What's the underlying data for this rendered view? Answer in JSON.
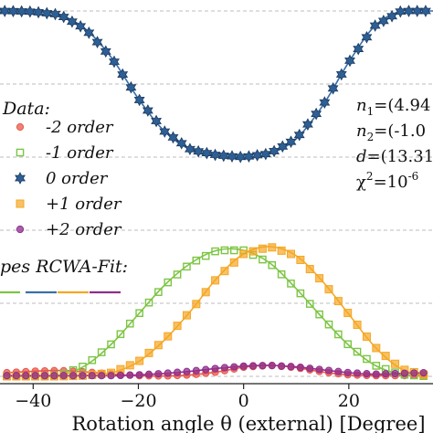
{
  "chart_data": {
    "type": "line",
    "title": "",
    "xlabel": "Rotation angle θ (external) [Degree]",
    "ylabel": "",
    "xlim": [
      -47,
      36
    ],
    "ylim": [
      0,
      1
    ],
    "x_ticks": [
      -40,
      -20,
      0,
      20
    ],
    "x_tick_labels": [
      "−40",
      "−20",
      "0",
      "20"
    ],
    "grid": true,
    "legend_placement": "left",
    "legend": {
      "data_title": "Data:",
      "fit_title": "pes RCWA-Fit:"
    },
    "annotations": {
      "n1_label": "n",
      "n1_sub": "1",
      "n1_value": "=(4.94",
      "n2_label": "n",
      "n2_sub": "2",
      "n2_value": "=(-1.0",
      "d_label": "d",
      "d_value": "=(13.31",
      "chi_label": "χ",
      "chi_value": "=10",
      "chi_exp": "-6",
      "chi_sup": "2"
    },
    "series": [
      {
        "name": "-2 order",
        "color": "#e8584a",
        "marker": "circle",
        "x": [
          -45,
          -40,
          -35,
          -30,
          -25,
          -20,
          -15,
          -10,
          -5,
          0,
          5,
          10,
          15,
          20,
          25,
          30,
          35
        ],
        "values": [
          0.01,
          0.014,
          0.016,
          0.012,
          0.006,
          0.002,
          0.001,
          0.004,
          0.012,
          0.025,
          0.03,
          0.024,
          0.012,
          0.004,
          0.002,
          0.002,
          0.003
        ]
      },
      {
        "name": "-1 order",
        "color": "#7cc543",
        "marker": "square-open",
        "x": [
          -45,
          -40,
          -35,
          -30,
          -25,
          -20,
          -15,
          -10,
          -5,
          0,
          5,
          10,
          15,
          20,
          25,
          30,
          35
        ],
        "values": [
          0.0,
          0.0,
          0.003,
          0.03,
          0.09,
          0.17,
          0.25,
          0.31,
          0.345,
          0.345,
          0.31,
          0.24,
          0.16,
          0.085,
          0.03,
          0.005,
          0.0
        ]
      },
      {
        "name": "0 order",
        "color": "#3a6fa8",
        "marker": "star",
        "x": [
          -47,
          -45,
          -40,
          -35,
          -30,
          -25,
          -20,
          -15,
          -10,
          -5,
          0,
          5,
          10,
          15,
          20,
          25,
          30,
          35,
          36
        ],
        "values": [
          1.0,
          1.0,
          0.998,
          0.99,
          0.95,
          0.87,
          0.76,
          0.67,
          0.62,
          0.605,
          0.6,
          0.61,
          0.65,
          0.74,
          0.86,
          0.96,
          1.0,
          1.0,
          1.0
        ]
      },
      {
        "name": "+1 order",
        "color": "#f5a623",
        "marker": "square",
        "x": [
          -45,
          -40,
          -35,
          -30,
          -25,
          -20,
          -15,
          -10,
          -5,
          0,
          5,
          10,
          15,
          20,
          25,
          30,
          35
        ],
        "values": [
          0.0,
          0.0,
          0.0,
          0.002,
          0.01,
          0.04,
          0.1,
          0.18,
          0.27,
          0.335,
          0.355,
          0.33,
          0.26,
          0.17,
          0.08,
          0.02,
          0.002
        ]
      },
      {
        "name": "+2 order",
        "color": "#8e2d8e",
        "marker": "circle",
        "x": [
          -45,
          -40,
          -35,
          -30,
          -25,
          -20,
          -15,
          -10,
          -5,
          0,
          5,
          10,
          15,
          20,
          25,
          30,
          35
        ],
        "values": [
          0.002,
          0.002,
          0.002,
          0.002,
          0.002,
          0.004,
          0.008,
          0.014,
          0.022,
          0.028,
          0.03,
          0.026,
          0.018,
          0.01,
          0.006,
          0.008,
          0.01
        ]
      }
    ]
  }
}
